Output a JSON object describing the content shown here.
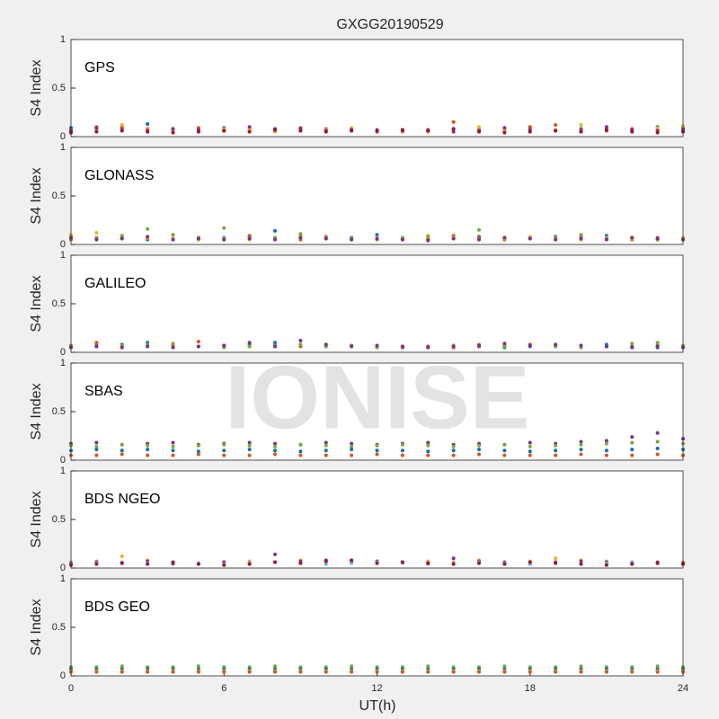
{
  "watermark": "IONISE",
  "chart_data": [
    {
      "type": "scatter",
      "title": "GXGG20190529",
      "label": "GPS",
      "ylabel": "S4 Index",
      "xlim": [
        0,
        24
      ],
      "ylim": [
        0,
        1
      ],
      "yticks": [
        0,
        0.5,
        1
      ],
      "x": [
        0,
        1,
        2,
        3,
        4,
        5,
        6,
        7,
        8,
        9,
        10,
        11,
        12,
        13,
        14,
        15,
        16,
        17,
        18,
        19,
        20,
        21,
        22,
        23,
        24
      ],
      "series": [
        {
          "color": "#0072BD",
          "values": [
            0.09,
            0.08,
            0.1,
            0.13,
            0.08,
            0.07,
            0.09,
            0.06,
            0.08,
            0.07,
            0.06,
            0.08,
            0.07,
            0.05,
            0.06,
            0.08,
            0.07,
            0.06,
            0.09,
            0.07,
            0.08,
            0.06,
            0.07,
            0.1,
            0.09
          ]
        },
        {
          "color": "#D95319",
          "values": [
            0.07,
            0.1,
            0.09,
            0.08,
            0.06,
            0.09,
            0.07,
            0.08,
            0.06,
            0.09,
            0.08,
            0.06,
            0.05,
            0.07,
            0.06,
            0.15,
            0.07,
            0.08,
            0.1,
            0.12,
            0.07,
            0.06,
            0.08,
            0.07,
            0.06
          ]
        },
        {
          "color": "#EDB120",
          "values": [
            0.05,
            0.06,
            0.12,
            0.07,
            0.05,
            0.06,
            0.08,
            0.07,
            0.05,
            0.06,
            0.07,
            0.09,
            0.06,
            0.05,
            0.05,
            0.06,
            0.1,
            0.07,
            0.06,
            0.07,
            0.12,
            0.08,
            0.06,
            0.09,
            0.11
          ]
        },
        {
          "color": "#7E2F8E",
          "values": [
            0.06,
            0.09,
            0.07,
            0.06,
            0.08,
            0.07,
            0.06,
            0.1,
            0.07,
            0.08,
            0.06,
            0.07,
            0.06,
            0.06,
            0.07,
            0.05,
            0.06,
            0.09,
            0.07,
            0.06,
            0.06,
            0.1,
            0.07,
            0.06,
            0.07
          ]
        },
        {
          "color": "#A2142F",
          "values": [
            0.04,
            0.05,
            0.06,
            0.05,
            0.04,
            0.05,
            0.06,
            0.05,
            0.07,
            0.06,
            0.05,
            0.06,
            0.06,
            0.07,
            0.06,
            0.08,
            0.05,
            0.04,
            0.05,
            0.06,
            0.05,
            0.07,
            0.05,
            0.04,
            0.05
          ]
        }
      ]
    },
    {
      "type": "scatter",
      "label": "GLONASS",
      "ylabel": "S4 Index",
      "xlim": [
        0,
        24
      ],
      "ylim": [
        0,
        1
      ],
      "yticks": [
        0,
        0.5,
        1
      ],
      "x": [
        0,
        1,
        2,
        3,
        4,
        5,
        6,
        7,
        8,
        9,
        10,
        11,
        12,
        13,
        14,
        15,
        16,
        17,
        18,
        19,
        20,
        21,
        22,
        23,
        24
      ],
      "series": [
        {
          "color": "#0072BD",
          "values": [
            0.08,
            0.06,
            0.07,
            0.05,
            0.06,
            0.05,
            0.07,
            0.08,
            0.14,
            0.09,
            0.06,
            0.07,
            0.1,
            0.06,
            0.05,
            0.07,
            0.08,
            0.06,
            0.07,
            0.08,
            0.05,
            0.09,
            0.06,
            0.05,
            0.06
          ]
        },
        {
          "color": "#D95319",
          "values": [
            0.05,
            0.07,
            0.08,
            0.06,
            0.1,
            0.07,
            0.05,
            0.09,
            0.06,
            0.05,
            0.08,
            0.06,
            0.07,
            0.05,
            0.06,
            0.09,
            0.07,
            0.05,
            0.06,
            0.07,
            0.08,
            0.06,
            0.05,
            0.07,
            0.06
          ]
        },
        {
          "color": "#EDB120",
          "values": [
            0.1,
            0.12,
            0.08,
            0.07,
            0.06,
            0.05,
            0.06,
            0.05,
            0.07,
            0.1,
            0.06,
            0.05,
            0.07,
            0.06,
            0.09,
            0.07,
            0.05,
            0.06,
            0.08,
            0.06,
            0.05,
            0.07,
            0.06,
            0.05,
            0.07
          ]
        },
        {
          "color": "#77AC30",
          "values": [
            0.06,
            0.07,
            0.09,
            0.16,
            0.1,
            0.07,
            0.17,
            0.06,
            0.07,
            0.11,
            0.07,
            0.06,
            0.05,
            0.07,
            0.08,
            0.06,
            0.15,
            0.07,
            0.06,
            0.07,
            0.1,
            0.06,
            0.07,
            0.05,
            0.06
          ]
        },
        {
          "color": "#7E2F8E",
          "values": [
            0.07,
            0.05,
            0.06,
            0.08,
            0.05,
            0.06,
            0.05,
            0.06,
            0.05,
            0.07,
            0.06,
            0.05,
            0.06,
            0.05,
            0.04,
            0.06,
            0.05,
            0.07,
            0.06,
            0.05,
            0.06,
            0.05,
            0.07,
            0.06,
            0.05
          ]
        }
      ]
    },
    {
      "type": "scatter",
      "label": "GALILEO",
      "ylabel": "S4 Index",
      "xlim": [
        0,
        24
      ],
      "ylim": [
        0,
        1
      ],
      "yticks": [
        0,
        0.5,
        1
      ],
      "x": [
        0,
        1,
        2,
        3,
        4,
        5,
        6,
        7,
        8,
        9,
        10,
        11,
        12,
        13,
        14,
        15,
        16,
        17,
        18,
        19,
        20,
        21,
        22,
        23,
        24
      ],
      "series": [
        {
          "color": "#0072BD",
          "values": [
            0.06,
            0.07,
            0.08,
            0.1,
            0.07,
            0.06,
            0.07,
            0.08,
            0.1,
            0.07,
            0.06,
            0.07,
            0.06,
            0.05,
            0.06,
            0.07,
            0.06,
            0.05,
            0.06,
            0.07,
            0.06,
            0.08,
            0.06,
            0.05,
            0.06
          ]
        },
        {
          "color": "#D95319",
          "values": [
            0.07,
            0.1,
            0.06,
            0.07,
            0.08,
            0.11,
            0.07,
            0.06,
            0.07,
            0.06,
            0.08,
            0.07,
            0.06,
            0.05,
            0.06,
            0.05,
            0.06,
            0.07,
            0.08,
            0.06,
            0.07,
            0.06,
            0.05,
            0.07,
            0.06
          ]
        },
        {
          "color": "#77AC30",
          "values": [
            0.06,
            0.06,
            0.07,
            0.08,
            0.09,
            0.06,
            0.05,
            0.06,
            0.07,
            0.08,
            0.06,
            0.07,
            0.05,
            0.06,
            0.05,
            0.07,
            0.08,
            0.06,
            0.07,
            0.06,
            0.05,
            0.06,
            0.09,
            0.1,
            0.07
          ]
        },
        {
          "color": "#7E2F8E",
          "values": [
            0.05,
            0.06,
            0.05,
            0.06,
            0.05,
            0.06,
            0.07,
            0.1,
            0.06,
            0.12,
            0.08,
            0.06,
            0.07,
            0.06,
            0.05,
            0.06,
            0.07,
            0.09,
            0.07,
            0.08,
            0.07,
            0.06,
            0.05,
            0.06,
            0.05
          ]
        }
      ]
    },
    {
      "type": "scatter",
      "label": "SBAS",
      "ylabel": "S4 Index",
      "xlim": [
        0,
        24
      ],
      "ylim": [
        0,
        1
      ],
      "yticks": [
        0,
        0.5,
        1
      ],
      "x": [
        0,
        1,
        2,
        3,
        4,
        5,
        6,
        7,
        8,
        9,
        10,
        11,
        12,
        13,
        14,
        15,
        16,
        17,
        18,
        19,
        20,
        21,
        22,
        23,
        24
      ],
      "series": [
        {
          "color": "#7E2F8E",
          "values": [
            0.17,
            0.18,
            0.16,
            0.17,
            0.18,
            0.16,
            0.17,
            0.18,
            0.17,
            0.16,
            0.18,
            0.17,
            0.16,
            0.17,
            0.18,
            0.16,
            0.17,
            0.16,
            0.18,
            0.17,
            0.19,
            0.2,
            0.24,
            0.28,
            0.22
          ]
        },
        {
          "color": "#77AC30",
          "values": [
            0.15,
            0.14,
            0.16,
            0.15,
            0.14,
            0.15,
            0.16,
            0.15,
            0.14,
            0.16,
            0.15,
            0.14,
            0.15,
            0.16,
            0.15,
            0.14,
            0.15,
            0.16,
            0.14,
            0.15,
            0.16,
            0.17,
            0.18,
            0.19,
            0.17
          ]
        },
        {
          "color": "#0072BD",
          "values": [
            0.1,
            0.11,
            0.1,
            0.11,
            0.1,
            0.09,
            0.1,
            0.11,
            0.1,
            0.09,
            0.1,
            0.11,
            0.1,
            0.1,
            0.09,
            0.1,
            0.11,
            0.1,
            0.09,
            0.1,
            0.11,
            0.1,
            0.11,
            0.12,
            0.11
          ]
        },
        {
          "color": "#D95319",
          "values": [
            0.05,
            0.05,
            0.06,
            0.05,
            0.05,
            0.06,
            0.05,
            0.05,
            0.06,
            0.05,
            0.05,
            0.05,
            0.06,
            0.05,
            0.05,
            0.05,
            0.06,
            0.05,
            0.05,
            0.05,
            0.06,
            0.05,
            0.05,
            0.06,
            0.05
          ]
        }
      ]
    },
    {
      "type": "scatter",
      "label": "BDS NGEO",
      "ylabel": "S4 Index",
      "xlim": [
        0,
        24
      ],
      "ylim": [
        0,
        1
      ],
      "yticks": [
        0,
        0.5,
        1
      ],
      "x": [
        0,
        1,
        2,
        3,
        4,
        5,
        6,
        7,
        8,
        9,
        10,
        11,
        12,
        13,
        14,
        15,
        16,
        17,
        18,
        19,
        20,
        21,
        22,
        23,
        24
      ],
      "series": [
        {
          "color": "#EDB120",
          "values": [
            0.06,
            0.07,
            0.12,
            0.08,
            0.06,
            0.05,
            0.06,
            0.07,
            0.06,
            0.08,
            0.07,
            0.06,
            0.05,
            0.06,
            0.07,
            0.06,
            0.08,
            0.06,
            0.07,
            0.1,
            0.08,
            0.07,
            0.06,
            0.05,
            0.06
          ]
        },
        {
          "color": "#7E2F8E",
          "values": [
            0.05,
            0.06,
            0.05,
            0.07,
            0.06,
            0.05,
            0.06,
            0.05,
            0.14,
            0.07,
            0.08,
            0.06,
            0.07,
            0.06,
            0.05,
            0.1,
            0.07,
            0.06,
            0.05,
            0.06,
            0.07,
            0.06,
            0.05,
            0.06,
            0.05
          ]
        },
        {
          "color": "#4DBEEE",
          "values": [
            0.04,
            0.05,
            0.06,
            0.05,
            0.04,
            0.05,
            0.04,
            0.05,
            0.06,
            0.05,
            0.04,
            0.05,
            0.06,
            0.05,
            0.04,
            0.05,
            0.06,
            0.05,
            0.04,
            0.05,
            0.04,
            0.05,
            0.06,
            0.05,
            0.04
          ]
        },
        {
          "color": "#A2142F",
          "values": [
            0.03,
            0.04,
            0.05,
            0.04,
            0.05,
            0.04,
            0.03,
            0.04,
            0.06,
            0.05,
            0.07,
            0.08,
            0.05,
            0.06,
            0.05,
            0.04,
            0.05,
            0.04,
            0.06,
            0.05,
            0.04,
            0.03,
            0.04,
            0.05,
            0.04
          ]
        }
      ]
    },
    {
      "type": "scatter",
      "label": "BDS GEO",
      "ylabel": "S4 Index",
      "xlabel": "UT(h)",
      "xlim": [
        0,
        24
      ],
      "ylim": [
        0,
        1
      ],
      "yticks": [
        0,
        0.5,
        1
      ],
      "xticks": [
        0,
        6,
        12,
        18,
        24
      ],
      "x": [
        0,
        1,
        2,
        3,
        4,
        5,
        6,
        7,
        8,
        9,
        10,
        11,
        12,
        13,
        14,
        15,
        16,
        17,
        18,
        19,
        20,
        21,
        22,
        23,
        24
      ],
      "series": [
        {
          "color": "#77AC30",
          "values": [
            0.09,
            0.09,
            0.1,
            0.09,
            0.09,
            0.1,
            0.09,
            0.09,
            0.1,
            0.09,
            0.09,
            0.1,
            0.09,
            0.09,
            0.1,
            0.09,
            0.09,
            0.1,
            0.09,
            0.09,
            0.1,
            0.09,
            0.09,
            0.1,
            0.09
          ]
        },
        {
          "color": "#0072BD",
          "values": [
            0.07,
            0.07,
            0.07,
            0.07,
            0.07,
            0.07,
            0.07,
            0.07,
            0.07,
            0.07,
            0.07,
            0.07,
            0.07,
            0.07,
            0.07,
            0.07,
            0.07,
            0.07,
            0.07,
            0.07,
            0.07,
            0.07,
            0.07,
            0.07,
            0.07
          ]
        },
        {
          "color": "#EDB120",
          "values": [
            0.05,
            0.05,
            0.05,
            0.05,
            0.05,
            0.05,
            0.05,
            0.05,
            0.05,
            0.05,
            0.05,
            0.05,
            0.05,
            0.05,
            0.05,
            0.05,
            0.05,
            0.05,
            0.05,
            0.05,
            0.05,
            0.05,
            0.05,
            0.05,
            0.05
          ]
        },
        {
          "color": "#D95319",
          "values": [
            0.04,
            0.04,
            0.04,
            0.04,
            0.04,
            0.04,
            0.04,
            0.04,
            0.04,
            0.04,
            0.04,
            0.04,
            0.04,
            0.04,
            0.04,
            0.04,
            0.04,
            0.04,
            0.04,
            0.04,
            0.04,
            0.04,
            0.04,
            0.04,
            0.04
          ]
        }
      ]
    }
  ]
}
